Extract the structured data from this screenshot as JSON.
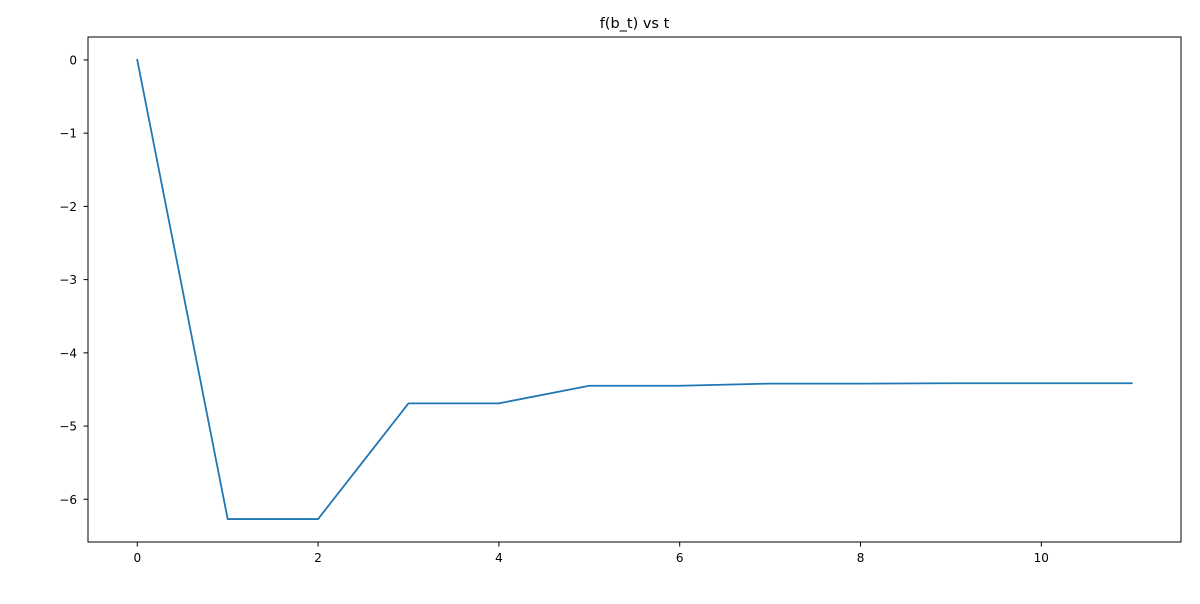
{
  "chart_data": {
    "type": "line",
    "title": "f(b_t) vs t",
    "xlabel": "",
    "ylabel": "",
    "x": [
      0,
      1,
      2,
      3,
      4,
      5,
      6,
      7,
      8,
      9,
      10,
      11
    ],
    "series": [
      {
        "values": [
          0,
          -6.27,
          -6.27,
          -4.69,
          -4.69,
          -4.45,
          -4.45,
          -4.42,
          -4.42,
          -4.415,
          -4.415,
          -4.415
        ],
        "color": "#1f77b4"
      }
    ],
    "xlim": [
      -0.545,
      11.545
    ],
    "ylim": [
      -6.5835,
      0.3135
    ],
    "xticks": [
      0,
      2,
      4,
      6,
      8,
      10
    ],
    "xtick_labels": [
      "0",
      "2",
      "4",
      "6",
      "8",
      "10"
    ],
    "yticks": [
      0,
      -1,
      -2,
      -3,
      -4,
      -5,
      -6
    ],
    "ytick_labels": [
      "0",
      "−1",
      "−2",
      "−3",
      "−4",
      "−5",
      "−6"
    ],
    "grid": false,
    "legend": "none"
  }
}
